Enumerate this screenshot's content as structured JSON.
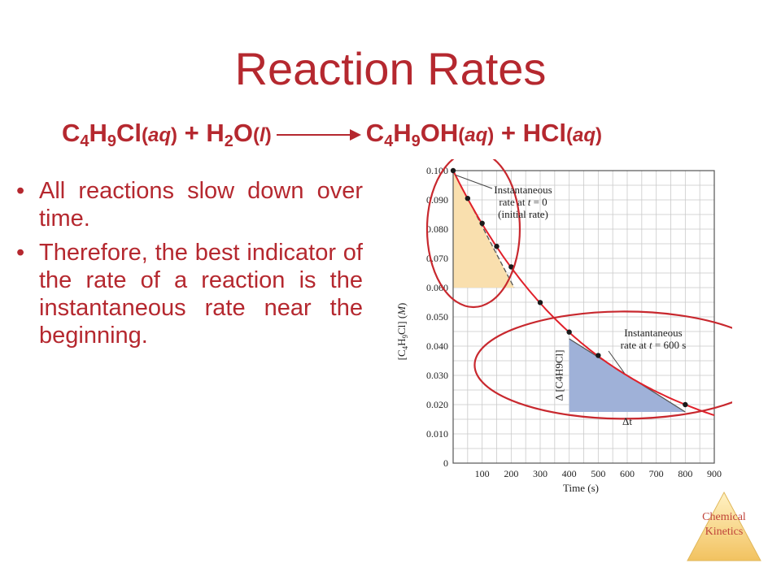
{
  "slide": {
    "title": "Reaction Rates",
    "bullets": [
      "All reactions slow down over time.",
      "Therefore, the best indicator of the rate of a reaction is the instantaneous rate near the beginning."
    ],
    "badge_line1": "Chemical",
    "badge_line2": "Kinetics"
  },
  "equation": {
    "r1_C": "C",
    "r1_s1": "4",
    "r1_H": "H",
    "r1_s2": "9",
    "r1_rest": "Cl",
    "r1_phase": "aq",
    "plus1": "+",
    "r2_H": "H",
    "r2_s": "2",
    "r2_O": "O",
    "r2_phase": "l",
    "p1_C": "C",
    "p1_s1": "4",
    "p1_H": "H",
    "p1_s2": "9",
    "p1_rest": "OH",
    "p1_phase": "aq",
    "plus2": "+",
    "p2": "HCl",
    "p2_phase": "aq"
  },
  "chart_data": {
    "type": "line",
    "x": [
      0,
      50,
      100,
      150,
      200,
      300,
      400,
      500,
      800
    ],
    "y": [
      0.1,
      0.0905,
      0.082,
      0.0741,
      0.0671,
      0.0549,
      0.0448,
      0.0368,
      0.02
    ],
    "xlabel": "Time (s)",
    "ylabel": "[C4H9Cl] (M)",
    "ylabel_parts": {
      "a": "[C",
      "b": "4",
      "c": "H",
      "d": "9",
      "e": "Cl] (",
      "f": "M",
      "g": ")"
    },
    "xlim": [
      0,
      900
    ],
    "ylim": [
      0,
      0.1
    ],
    "xticks": [
      "100",
      "200",
      "300",
      "400",
      "500",
      "600",
      "700",
      "800",
      "900"
    ],
    "xtick_values": [
      100,
      200,
      300,
      400,
      500,
      600,
      700,
      800,
      900
    ],
    "yticks": [
      "0",
      "0.010",
      "0.020",
      "0.030",
      "0.040",
      "0.050",
      "0.060",
      "0.070",
      "0.080",
      "0.090",
      "0.100"
    ],
    "ytick_values": [
      0,
      0.01,
      0.02,
      0.03,
      0.04,
      0.05,
      0.06,
      0.07,
      0.08,
      0.09,
      0.1
    ],
    "grid": true,
    "tangents": [
      {
        "x1": 0,
        "y1": 0.1,
        "x2": 210,
        "y2": 0.06
      },
      {
        "x1": 400,
        "y1": 0.0425,
        "x2": 800,
        "y2": 0.0175
      }
    ],
    "annotations": {
      "initial_l1": "Instantaneous",
      "initial_l2a": "rate at ",
      "initial_l2t": "t",
      "initial_l2b": " = 0",
      "initial_l3": "(initial rate)",
      "later_l1": "Instantaneous",
      "later_l2a": "rate at ",
      "later_l2t": "t",
      "later_l2b": " = 600 s",
      "delta_t": "Δt",
      "delta_c": "Δ [C4H9Cl]"
    },
    "colors": {
      "curve": "#e0202a",
      "points": "#1a1a1a",
      "initial_fill": "#f9dfae",
      "later_fill": "#9fb1d8",
      "circle": "#c8282e",
      "grid": "#c9c9c9"
    }
  }
}
